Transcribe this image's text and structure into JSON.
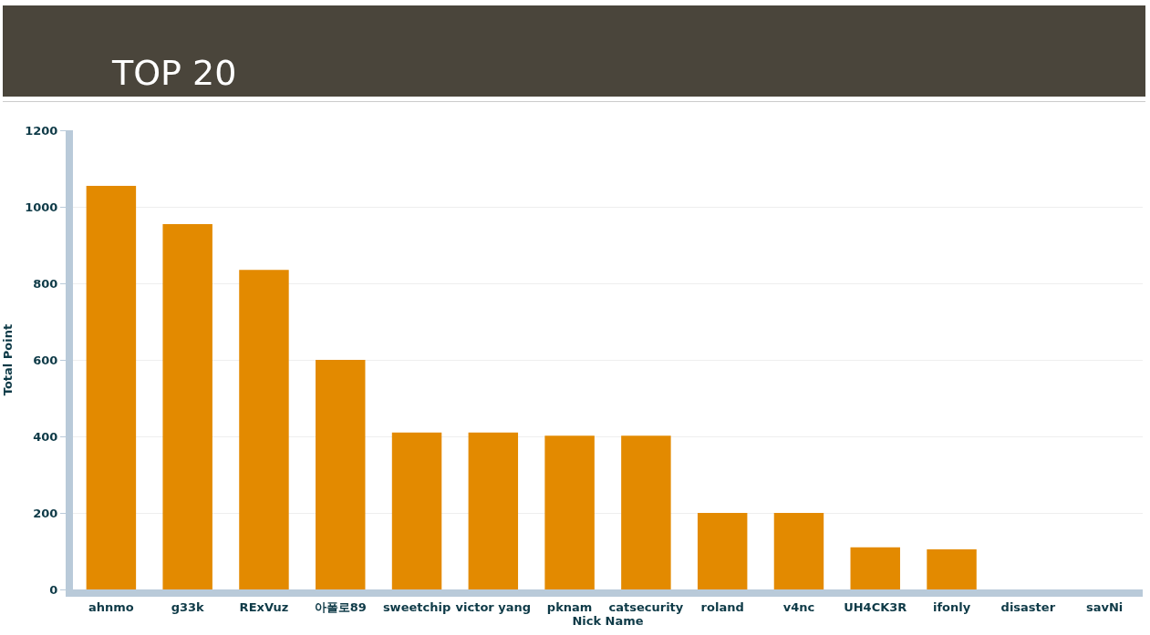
{
  "chart_data": {
    "type": "bar",
    "title": "TOP 20",
    "xlabel": "Nick Name",
    "ylabel": "Total Point",
    "categories": [
      "ahnmo",
      "g33k",
      "RExVuz",
      "아폴로89",
      "sweetchip",
      "victor yang",
      "pknam",
      "catsecurity",
      "roland",
      "v4nc",
      "UH4CK3R",
      "ifonly",
      "disaster",
      "savNi"
    ],
    "values": [
      1055,
      955,
      835,
      600,
      410,
      410,
      402,
      402,
      200,
      200,
      110,
      105,
      0,
      0
    ],
    "color": "#e38a00",
    "ylim": [
      0,
      1200
    ],
    "yticks": [
      0,
      200,
      400,
      600,
      800,
      1000,
      1200
    ],
    "grid": "y",
    "legend": false
  }
}
